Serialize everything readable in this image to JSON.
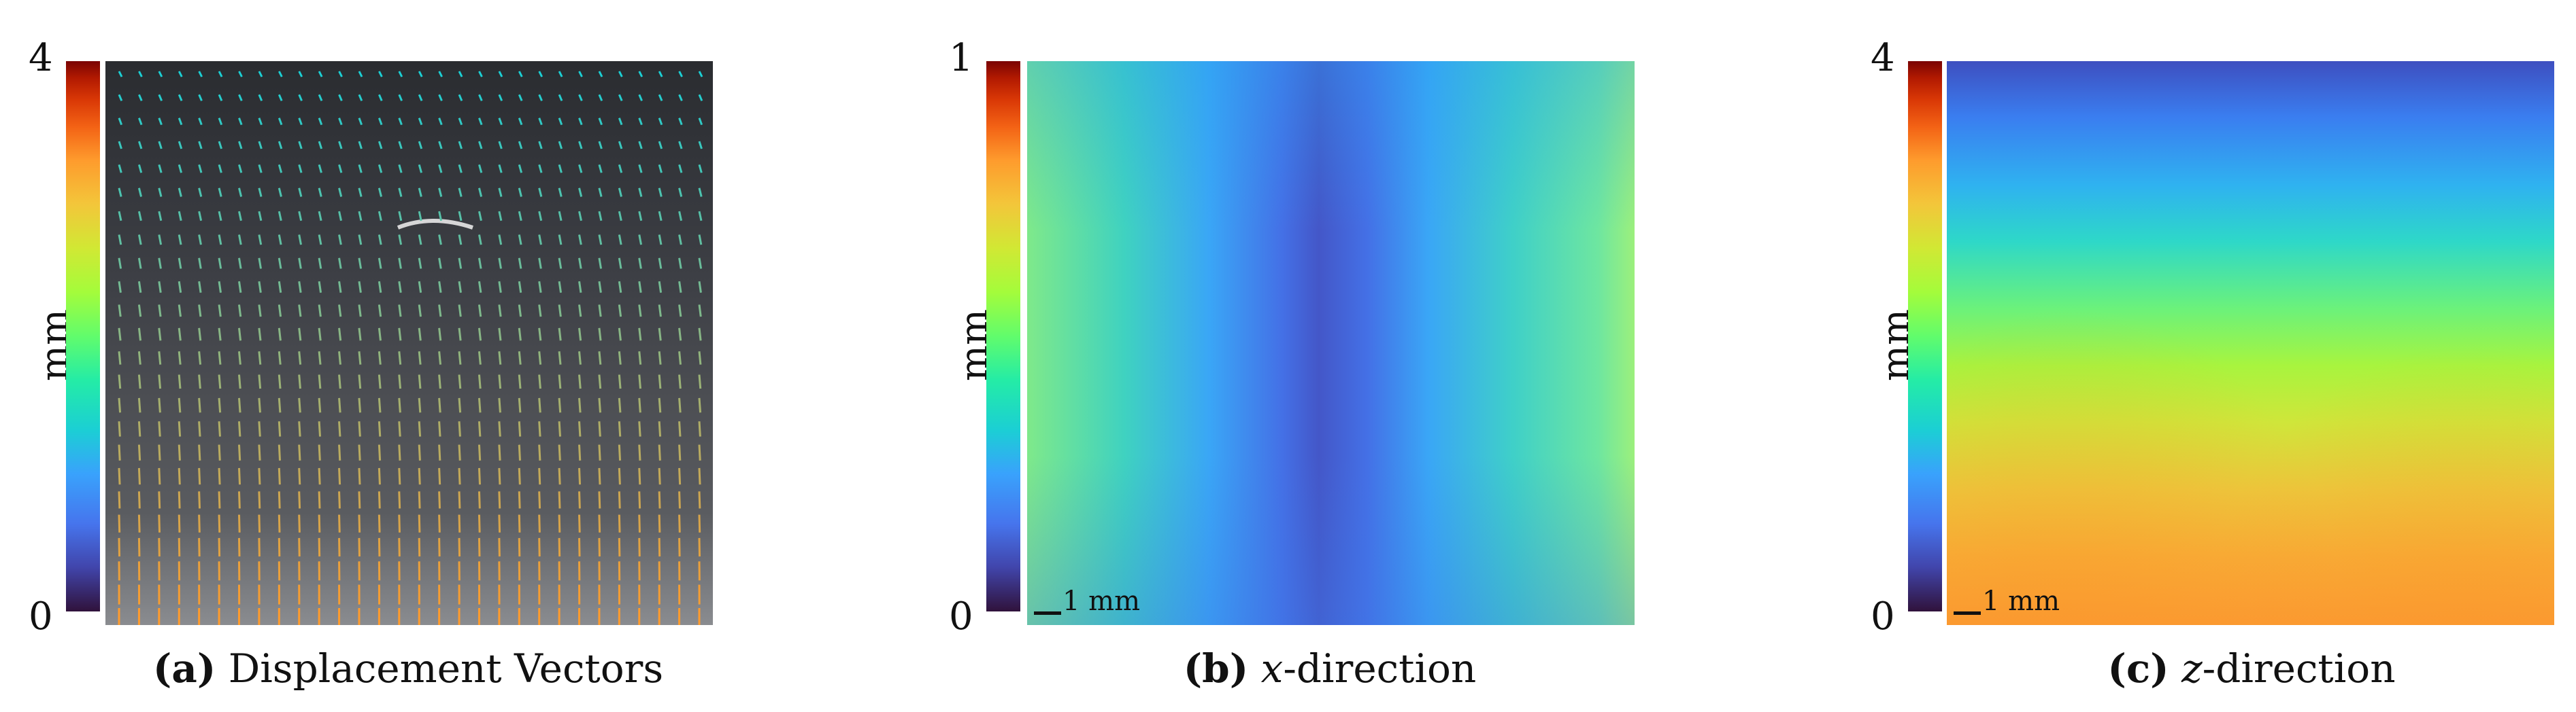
{
  "colors": {
    "colormap": [
      "#30123b",
      "#4145ab",
      "#4675ed",
      "#39a2fc",
      "#1bcfd4",
      "#24eca6",
      "#61fc6c",
      "#a4fc3b",
      "#d1e834",
      "#f3c63a",
      "#fe9b2d",
      "#f36315",
      "#d93806",
      "#b11901",
      "#7a0403"
    ],
    "vector_color_low": "#1bcfd4",
    "vector_color_high": "#fe9b2d"
  },
  "panels": [
    {
      "caption_label": "(a)",
      "caption_text": "Displacement Vectors",
      "colorbar": {
        "min": "0",
        "max": "4",
        "unit": "mm"
      }
    },
    {
      "caption_label": "(b)",
      "caption_var": "x",
      "caption_text": "-direction",
      "colorbar": {
        "min": "0",
        "max": "1",
        "unit": "mm"
      },
      "scale_bar": "1 mm"
    },
    {
      "caption_label": "(c)",
      "caption_var": "z",
      "caption_text": "-direction",
      "colorbar": {
        "min": "0",
        "max": "4",
        "unit": "mm"
      },
      "scale_bar": "1 mm"
    }
  ]
}
